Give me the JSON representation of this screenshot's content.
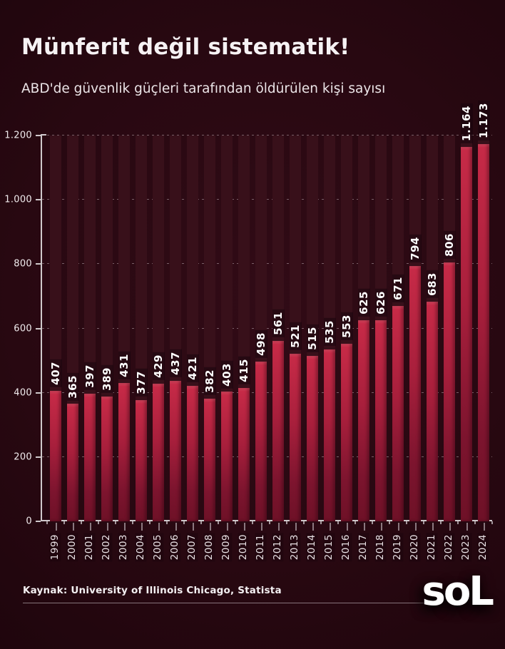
{
  "page": {
    "title": "Münferit değil sistematik!",
    "subtitle": "ABD'de güvenlik güçleri tarafından öldürülen kişi sayısı",
    "source": "Kaynak: University of Illinois Chicago, Statista",
    "logo": "soL"
  },
  "colors": {
    "background_center": "#310b16",
    "background_edge": "#1c040b",
    "bar_top": "#c62a47",
    "bar_bottom": "#6e1127",
    "column_track": "#38101a",
    "axis": "#cfc8cb",
    "label_text": "#ffffff"
  },
  "chart_data": {
    "type": "bar",
    "title": "Münferit değil sistematik!",
    "subtitle": "ABD'de güvenlik güçleri tarafından öldürülen kişi sayısı",
    "xlabel": "",
    "ylabel": "",
    "categories": [
      "1999",
      "2000",
      "2001",
      "2002",
      "2003",
      "2004",
      "2005",
      "2006",
      "2007",
      "2008",
      "2009",
      "2010",
      "2011",
      "2012",
      "2013",
      "2014",
      "2015",
      "2016",
      "2017",
      "2018",
      "2019",
      "2020",
      "2021",
      "2022",
      "2023",
      "2024"
    ],
    "values": [
      407,
      365,
      397,
      389,
      431,
      377,
      429,
      437,
      421,
      382,
      403,
      415,
      498,
      561,
      521,
      515,
      535,
      553,
      625,
      626,
      671,
      794,
      683,
      806,
      1164,
      1173
    ],
    "value_labels": [
      "407",
      "365",
      "397",
      "389",
      "431",
      "377",
      "429",
      "437",
      "421",
      "382",
      "403",
      "415",
      "498",
      "561",
      "521",
      "515",
      "535",
      "553",
      "625",
      "626",
      "671",
      "794",
      "683",
      "806",
      "1.164",
      "1.173"
    ],
    "ylim": [
      0,
      1200
    ],
    "yticks": [
      0,
      200,
      400,
      600,
      800,
      1000,
      1200
    ],
    "ytick_labels": [
      "0",
      "200",
      "400",
      "600",
      "800",
      "1.000",
      "1.200"
    ],
    "grid": "dashed horizontal gridlines",
    "legend": "none",
    "bar_label_rotation": 90,
    "xtick_rotation": 90
  }
}
